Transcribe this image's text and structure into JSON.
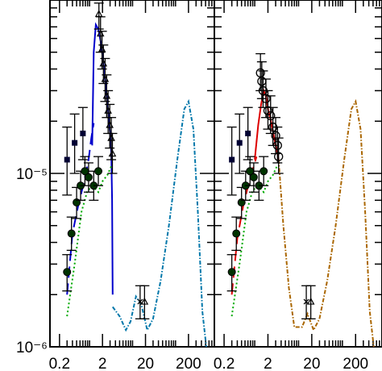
{
  "chart_data": [
    {
      "type": "line",
      "panel": "left",
      "xscale": "log",
      "yscale": "log",
      "xlim": [
        0.12,
        800
      ],
      "ylim": [
        1e-06,
        0.0001
      ],
      "x_tick_labels": [
        {
          "x": 0.2,
          "label": "0.2"
        },
        {
          "x": 2,
          "label": "2"
        },
        {
          "x": 20,
          "label": "20"
        },
        {
          "x": 200,
          "label": "200"
        }
      ],
      "y_tick_labels": [
        {
          "y": 1e-05,
          "label": "10⁻⁵"
        },
        {
          "y": 1e-06,
          "label": "10⁻⁶"
        }
      ],
      "series": [
        {
          "style": "solid",
          "color": "#0000cc",
          "x": [
            1.15,
            1.25,
            1.4,
            1.6,
            1.85,
            2.1,
            2.4,
            2.7,
            3.0,
            3.2,
            3.35,
            3.45
          ],
          "y": [
            1.45e-05,
            5e-05,
            7.2e-05,
            6.8e-05,
            5.6e-05,
            4.3e-05,
            3.1e-05,
            2.3e-05,
            1.7e-05,
            1.3e-05,
            7e-06,
            2e-06
          ]
        },
        {
          "style": "dashed",
          "color": "#0000cc",
          "x": [
            0.3,
            0.4,
            0.55,
            0.75,
            0.95,
            1.1,
            1.25
          ],
          "y": [
            2e-06,
            4.5e-06,
            6.6e-06,
            9e-06,
            1.2e-05,
            1.6e-05,
            1.95e-05
          ]
        },
        {
          "style": "dotted",
          "color": "#00aa00",
          "x": [
            0.3,
            0.45,
            0.65,
            0.9,
            1.2,
            1.6,
            2.0,
            2.6,
            3.2
          ],
          "y": [
            1.5e-06,
            3e-06,
            6e-06,
            8e-06,
            8.4e-06,
            7.8e-06,
            9e-06,
            9.8e-06,
            1.1e-05
          ]
        },
        {
          "style": "dotted-dashed",
          "color": "#0077aa",
          "x": [
            3.45,
            5,
            7,
            9,
            12,
            16,
            22,
            30,
            45,
            70,
            110,
            160,
            200,
            260,
            330,
            420,
            520
          ],
          "y": [
            1.7e-06,
            1.5e-06,
            1.25e-06,
            1.4e-06,
            1.95e-06,
            1.75e-06,
            1.25e-06,
            1.45e-06,
            2.4e-06,
            5e-06,
            1.2e-05,
            2.35e-05,
            2.6e-05,
            1.8e-05,
            6e-06,
            1.6e-06,
            1e-06
          ]
        }
      ],
      "markers": [
        {
          "symbol": "filled-square",
          "color": "#000033",
          "points": [
            {
              "x": 0.3,
              "y": 1.2e-05,
              "ylo": 7.5e-06,
              "yhi": 1.85e-05
            },
            {
              "x": 0.45,
              "y": 1.5e-05,
              "ylo": 1e-05,
              "yhi": 2.2e-05
            },
            {
              "x": 0.7,
              "y": 1.7e-05,
              "ylo": 1.2e-05,
              "yhi": 2.4e-05
            }
          ]
        },
        {
          "symbol": "filled-circle",
          "color": "#003300",
          "points": [
            {
              "x": 0.3,
              "y": 2.7e-06,
              "ylo": 2.1e-06,
              "yhi": 3.4e-06
            },
            {
              "x": 0.38,
              "y": 4.5e-06,
              "ylo": 3.6e-06,
              "yhi": 5.6e-06
            },
            {
              "x": 0.5,
              "y": 6.8e-06,
              "ylo": 5.5e-06,
              "yhi": 8.3e-06
            },
            {
              "x": 0.62,
              "y": 8.5e-06,
              "ylo": 7e-06,
              "yhi": 1.03e-05
            },
            {
              "x": 0.78,
              "y": 1.03e-05,
              "ylo": 8.5e-06,
              "yhi": 1.25e-05
            },
            {
              "x": 0.95,
              "y": 9.5e-06,
              "ylo": 7.8e-06,
              "yhi": 1.15e-05
            },
            {
              "x": 1.25,
              "y": 8.5e-06,
              "ylo": 7e-06,
              "yhi": 1.03e-05
            },
            {
              "x": 1.6,
              "y": 1.03e-05,
              "ylo": 8.5e-06,
              "yhi": 1.25e-05
            }
          ]
        },
        {
          "symbol": "open-triangle",
          "color": "#000000",
          "points": [
            {
              "x": 1.65,
              "y": 8.3e-05,
              "ylo": 6.8e-05,
              "yhi": 9.6e-05
            },
            {
              "x": 1.8,
              "y": 6.4e-05,
              "ylo": 5e-05,
              "yhi": 8e-05
            },
            {
              "x": 1.95,
              "y": 5.2e-05,
              "ylo": 4e-05,
              "yhi": 6.6e-05
            },
            {
              "x": 2.1,
              "y": 4.3e-05,
              "ylo": 3.3e-05,
              "yhi": 5.5e-05
            },
            {
              "x": 2.3,
              "y": 3.5e-05,
              "ylo": 2.6e-05,
              "yhi": 4.6e-05
            },
            {
              "x": 2.5,
              "y": 2.8e-05,
              "ylo": 2.1e-05,
              "yhi": 3.7e-05
            },
            {
              "x": 2.7,
              "y": 2.3e-05,
              "ylo": 1.7e-05,
              "yhi": 3e-05
            },
            {
              "x": 2.95,
              "y": 1.9e-05,
              "ylo": 1.4e-05,
              "yhi": 2.5e-05
            },
            {
              "x": 3.2,
              "y": 1.6e-05,
              "ylo": 1.2e-05,
              "yhi": 2.1e-05
            },
            {
              "x": 3.4,
              "y": 1.3e-05,
              "ylo": 1e-05,
              "yhi": 1.7e-05
            }
          ]
        },
        {
          "symbol": "cross",
          "color": "#000000",
          "points": [
            {
              "x": 15,
              "y": 1.82e-06,
              "ylo": 1.45e-06,
              "yhi": 2.25e-06
            }
          ]
        },
        {
          "symbol": "open-triangle",
          "color": "#000000",
          "points": [
            {
              "x": 19,
              "y": 1.82e-06,
              "ylo": 1.45e-06,
              "yhi": 2.25e-06
            }
          ]
        }
      ]
    },
    {
      "type": "line",
      "panel": "right",
      "xscale": "log",
      "yscale": "log",
      "xlim": [
        0.12,
        800
      ],
      "ylim": [
        1e-06,
        0.0001
      ],
      "x_tick_labels": [
        {
          "x": 0.2,
          "label": "0.2"
        },
        {
          "x": 2,
          "label": "2"
        },
        {
          "x": 20,
          "label": "20"
        },
        {
          "x": 200,
          "label": "200"
        }
      ],
      "series": [
        {
          "style": "solid",
          "color": "#dd0000",
          "x": [
            1.0,
            1.2,
            1.4,
            1.6,
            1.8,
            2.0,
            2.3,
            2.6,
            3.0,
            3.3,
            3.5
          ],
          "y": [
            1.2e-05,
            1.9e-05,
            2.5e-05,
            3e-05,
            2.8e-05,
            2.35e-05,
            2.05e-05,
            1.75e-05,
            1.45e-05,
            1.3e-05,
            1.2e-05
          ]
        },
        {
          "style": "dashed",
          "color": "#dd0000",
          "x": [
            0.3,
            0.4,
            0.55,
            0.75,
            0.95,
            1.1
          ],
          "y": [
            2e-06,
            4.2e-06,
            6.6e-06,
            9e-06,
            1.1e-05,
            1.25e-05
          ]
        },
        {
          "style": "dotted",
          "color": "#00aa00",
          "x": [
            0.3,
            0.45,
            0.65,
            0.9,
            1.2,
            1.6,
            2.0,
            2.6,
            3.2
          ],
          "y": [
            1.5e-06,
            3e-06,
            6e-06,
            8e-06,
            8.4e-06,
            7.8e-06,
            9e-06,
            9.8e-06,
            1.1e-05
          ]
        },
        {
          "style": "dotted-dashed",
          "color": "#aa6600",
          "x": [
            3.5,
            4.5,
            6,
            8,
            12,
            16,
            22,
            30,
            45,
            70,
            110,
            160,
            200,
            260,
            330,
            420,
            520
          ],
          "y": [
            1.2e-05,
            5e-06,
            2.2e-06,
            1.3e-06,
            1.3e-06,
            1.55e-06,
            1.25e-06,
            1.45e-06,
            2.4e-06,
            5e-06,
            1.2e-05,
            2.35e-05,
            2.6e-05,
            1.8e-05,
            6e-06,
            1.6e-06,
            1e-06
          ]
        }
      ],
      "markers": [
        {
          "symbol": "filled-square",
          "color": "#000033",
          "points": [
            {
              "x": 0.3,
              "y": 1.2e-05,
              "ylo": 7.5e-06,
              "yhi": 1.85e-05
            },
            {
              "x": 0.45,
              "y": 1.5e-05,
              "ylo": 1e-05,
              "yhi": 2.2e-05
            },
            {
              "x": 0.7,
              "y": 1.7e-05,
              "ylo": 1.2e-05,
              "yhi": 2.4e-05
            }
          ]
        },
        {
          "symbol": "filled-circle",
          "color": "#003300",
          "points": [
            {
              "x": 0.3,
              "y": 2.7e-06,
              "ylo": 2.1e-06,
              "yhi": 3.4e-06
            },
            {
              "x": 0.38,
              "y": 4.5e-06,
              "ylo": 3.6e-06,
              "yhi": 5.6e-06
            },
            {
              "x": 0.5,
              "y": 6.8e-06,
              "ylo": 5.5e-06,
              "yhi": 8.3e-06
            },
            {
              "x": 0.62,
              "y": 8.5e-06,
              "ylo": 7e-06,
              "yhi": 1.03e-05
            },
            {
              "x": 0.78,
              "y": 1.03e-05,
              "ylo": 8.5e-06,
              "yhi": 1.25e-05
            },
            {
              "x": 0.95,
              "y": 9.5e-06,
              "ylo": 7.8e-06,
              "yhi": 1.15e-05
            },
            {
              "x": 1.25,
              "y": 8.5e-06,
              "ylo": 7e-06,
              "yhi": 1.03e-05
            },
            {
              "x": 1.6,
              "y": 1.03e-05,
              "ylo": 8.5e-06,
              "yhi": 1.25e-05
            }
          ]
        },
        {
          "symbol": "open-circle",
          "color": "#000000",
          "points": [
            {
              "x": 1.35,
              "y": 3.8e-05,
              "ylo": 3e-05,
              "yhi": 4.9e-05
            },
            {
              "x": 1.45,
              "y": 3.4e-05,
              "ylo": 2.7e-05,
              "yhi": 4.4e-05
            },
            {
              "x": 1.55,
              "y": 3e-05,
              "ylo": 2.4e-05,
              "yhi": 3.9e-05
            },
            {
              "x": 1.8,
              "y": 2.7e-05,
              "ylo": 2.1e-05,
              "yhi": 3.5e-05
            },
            {
              "x": 2.0,
              "y": 2.3e-05,
              "ylo": 1.8e-05,
              "yhi": 3e-05
            },
            {
              "x": 2.3,
              "y": 2.15e-05,
              "ylo": 1.7e-05,
              "yhi": 2.8e-05
            },
            {
              "x": 2.6,
              "y": 1.85e-05,
              "ylo": 1.45e-05,
              "yhi": 2.4e-05
            },
            {
              "x": 3.0,
              "y": 1.65e-05,
              "ylo": 1.3e-05,
              "yhi": 2.1e-05
            },
            {
              "x": 3.3,
              "y": 1.45e-05,
              "ylo": 1.15e-05,
              "yhi": 1.85e-05
            },
            {
              "x": 3.5,
              "y": 1.25e-05,
              "ylo": 1e-05,
              "yhi": 1.6e-05
            }
          ]
        },
        {
          "symbol": "cross",
          "color": "#000000",
          "points": [
            {
              "x": 15,
              "y": 1.82e-06,
              "ylo": 1.45e-06,
              "yhi": 2.25e-06
            }
          ]
        },
        {
          "symbol": "open-triangle",
          "color": "#000000",
          "points": [
            {
              "x": 19,
              "y": 1.82e-06,
              "ylo": 1.45e-06,
              "yhi": 2.25e-06
            }
          ]
        }
      ]
    }
  ]
}
